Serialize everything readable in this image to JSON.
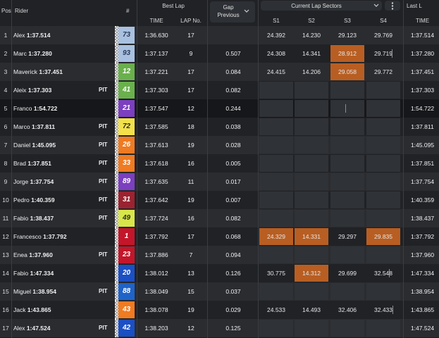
{
  "header": {
    "pos": "Pos",
    "rider": "Rider",
    "hash": "#",
    "best_lap": "Best Lap",
    "time": "TIME",
    "lap_no": "LAP No.",
    "gap_line1": "Gap",
    "gap_line2": "Previous",
    "current_sectors": "Current Lap Sectors",
    "s1": "S1",
    "s2": "S2",
    "s3": "S3",
    "s4": "S4",
    "last_lap": "Last L",
    "last_time": "TIME"
  },
  "colors": {
    "fastest_sector": "#b85e22",
    "background": "#1b1d20"
  },
  "rows": [
    {
      "pos": "1",
      "first": "Alex",
      "last": "1:37.514",
      "pit": "",
      "num": "73",
      "num_bg": "#a9c1e0",
      "num_fg": "#2a3b5a",
      "time": "1:36.630",
      "lap": "17",
      "gap": "",
      "s1": "24.392",
      "s2": "14.230",
      "s3": "29.123",
      "s4": "29.769"
    },
    {
      "pos": "2",
      "first": "Marc",
      "last": "1:37.280",
      "pit": "",
      "num": "93",
      "num_bg": "#a9c1e0",
      "num_fg": "#2a3b5a",
      "time": "1:37.137",
      "lap": "9",
      "gap": "0.507",
      "s1": "24.308",
      "s2": "14.341",
      "s3": "28.912",
      "s4": "29.719"
    },
    {
      "pos": "3",
      "first": "Maverick",
      "last": "1:37.451",
      "pit": "",
      "num": "12",
      "num_bg": "#6ab04c",
      "num_fg": "#ffffff",
      "time": "1:37.221",
      "lap": "17",
      "gap": "0.084",
      "s1": "24.415",
      "s2": "14.206",
      "s3": "29.058",
      "s4": "29.772"
    },
    {
      "pos": "4",
      "first": "Aleix",
      "last": "1:37.303",
      "pit": "PIT",
      "num": "41",
      "num_bg": "#6ab04c",
      "num_fg": "#ffffff",
      "time": "1:37.303",
      "lap": "17",
      "gap": "0.082",
      "s1": "",
      "s2": "",
      "s3": "",
      "s4": ""
    },
    {
      "pos": "5",
      "first": "Franco",
      "last": "1:54.722",
      "pit": "",
      "num": "21",
      "num_bg": "#7b3fbf",
      "num_fg": "#ffffff",
      "time": "1:37.547",
      "lap": "12",
      "gap": "0.244",
      "s1": "",
      "s2": "",
      "s3": "",
      "s4": ""
    },
    {
      "pos": "6",
      "first": "Marco",
      "last": "1:37.811",
      "pit": "PIT",
      "num": "72",
      "num_bg": "#f2e14a",
      "num_fg": "#2a2a2a",
      "time": "1:37.585",
      "lap": "18",
      "gap": "0.038",
      "s1": "",
      "s2": "",
      "s3": "",
      "s4": ""
    },
    {
      "pos": "7",
      "first": "Daniel",
      "last": "1:45.095",
      "pit": "PIT",
      "num": "26",
      "num_bg": "#ef7b22",
      "num_fg": "#ffffff",
      "time": "1:37.613",
      "lap": "19",
      "gap": "0.028",
      "s1": "",
      "s2": "",
      "s3": "",
      "s4": ""
    },
    {
      "pos": "8",
      "first": "Brad",
      "last": "1:37.851",
      "pit": "PIT",
      "num": "33",
      "num_bg": "#ef7b22",
      "num_fg": "#ffffff",
      "time": "1:37.618",
      "lap": "16",
      "gap": "0.005",
      "s1": "",
      "s2": "",
      "s3": "",
      "s4": ""
    },
    {
      "pos": "9",
      "first": "Jorge",
      "last": "1:37.754",
      "pit": "PIT",
      "num": "89",
      "num_bg": "#7b3fbf",
      "num_fg": "#ffffff",
      "time": "1:37.635",
      "lap": "11",
      "gap": "0.017",
      "s1": "",
      "s2": "",
      "s3": "",
      "s4": ""
    },
    {
      "pos": "10",
      "first": "Pedro",
      "last": "1:40.359",
      "pit": "PIT",
      "num": "31",
      "num_bg": "#9b2330",
      "num_fg": "#ffffff",
      "time": "1:37.642",
      "lap": "19",
      "gap": "0.007",
      "s1": "",
      "s2": "",
      "s3": "",
      "s4": ""
    },
    {
      "pos": "11",
      "first": "Fabio",
      "last": "1:38.437",
      "pit": "PIT",
      "num": "49",
      "num_bg": "#d8e64a",
      "num_fg": "#2a2a2a",
      "time": "1:37.724",
      "lap": "16",
      "gap": "0.082",
      "s1": "",
      "s2": "",
      "s3": "",
      "s4": ""
    },
    {
      "pos": "12",
      "first": "Francesco",
      "last": "1:37.792",
      "pit": "",
      "num": "1",
      "num_bg": "#c3162a",
      "num_fg": "#ffffff",
      "time": "1:37.792",
      "lap": "17",
      "gap": "0.068",
      "s1": "24.329",
      "s2": "14.331",
      "s3": "29.297",
      "s4": "29.835"
    },
    {
      "pos": "13",
      "first": "Enea",
      "last": "1:37.960",
      "pit": "PIT",
      "num": "23",
      "num_bg": "#c3162a",
      "num_fg": "#ffffff",
      "time": "1:37.886",
      "lap": "7",
      "gap": "0.094",
      "s1": "",
      "s2": "",
      "s3": "",
      "s4": ""
    },
    {
      "pos": "14",
      "first": "Fabio",
      "last": "1:47.334",
      "pit": "",
      "num": "20",
      "num_bg": "#1b4fc4",
      "num_fg": "#ffffff",
      "time": "1:38.012",
      "lap": "13",
      "gap": "0.126",
      "s1": "30.775",
      "s2": "14.312",
      "s3": "29.699",
      "s4": "32.548"
    },
    {
      "pos": "15",
      "first": "Miguel",
      "last": "1:38.954",
      "pit": "PIT",
      "num": "88",
      "num_bg": "#1f63c9",
      "num_fg": "#ffffff",
      "time": "1:38.049",
      "lap": "15",
      "gap": "0.037",
      "s1": "",
      "s2": "",
      "s3": "",
      "s4": ""
    },
    {
      "pos": "16",
      "first": "Jack",
      "last": "1:43.865",
      "pit": "",
      "num": "43",
      "num_bg": "#ef7b22",
      "num_fg": "#ffffff",
      "time": "1:38.078",
      "lap": "19",
      "gap": "0.029",
      "s1": "24.533",
      "s2": "14.493",
      "s3": "32.406",
      "s4": "32.433"
    },
    {
      "pos": "17",
      "first": "Alex",
      "last": "1:47.524",
      "pit": "PIT",
      "num": "42",
      "num_bg": "#1b4fc4",
      "num_fg": "#ffffff",
      "time": "1:38.203",
      "lap": "12",
      "gap": "0.125",
      "s1": "",
      "s2": "",
      "s3": "",
      "s4": ""
    }
  ],
  "fastest_sectors": {
    "2": [
      "s3"
    ],
    "3": [
      "s3"
    ],
    "12": [
      "s1",
      "s2",
      "s4"
    ],
    "14": [
      "s2"
    ]
  }
}
